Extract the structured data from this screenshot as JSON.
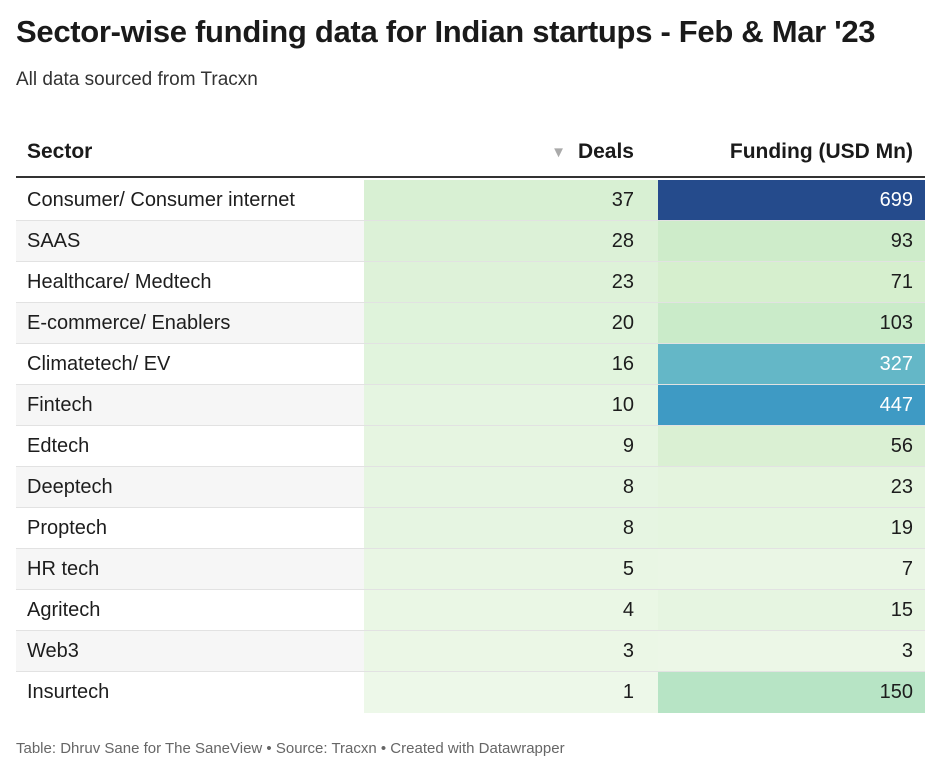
{
  "title": "Sector-wise funding data for Indian startups - Feb & Mar '23",
  "subtitle": "All data sourced from Tracxn",
  "columns": {
    "sector": "Sector",
    "deals": "Deals",
    "funding": "Funding (USD Mn)"
  },
  "sort_icon": "sort-descending-icon",
  "footer": "Table: Dhruv Sane for The SaneView • Source: Tracxn • Created with Datawrapper",
  "colors": {
    "deals_light": "#f0f9ec",
    "deals_dark": "#d8f0d3",
    "funding_scale": [
      "#eef8ea",
      "#d3eecb",
      "#a3dcc0",
      "#57afc9",
      "#2c8bc0",
      "#254b8c"
    ],
    "row_alt": "#f6f6f6",
    "header_rule": "#333333"
  },
  "chart_data": {
    "type": "table",
    "title": "Sector-wise funding data for Indian startups - Feb & Mar '23",
    "subtitle": "All data sourced from Tracxn",
    "columns": [
      "Sector",
      "Deals",
      "Funding (USD Mn)"
    ],
    "sorted_by": "Deals",
    "sort_order": "descending",
    "rows": [
      {
        "sector": "Consumer/ Consumer internet",
        "deals": 37,
        "funding": 699
      },
      {
        "sector": "SAAS",
        "deals": 28,
        "funding": 93
      },
      {
        "sector": "Healthcare/ Medtech",
        "deals": 23,
        "funding": 71
      },
      {
        "sector": "E-commerce/ Enablers",
        "deals": 20,
        "funding": 103
      },
      {
        "sector": "Climatetech/ EV",
        "deals": 16,
        "funding": 327
      },
      {
        "sector": "Fintech",
        "deals": 10,
        "funding": 447
      },
      {
        "sector": "Edtech",
        "deals": 9,
        "funding": 56
      },
      {
        "sector": "Deeptech",
        "deals": 8,
        "funding": 23
      },
      {
        "sector": "Proptech",
        "deals": 8,
        "funding": 19
      },
      {
        "sector": "HR tech",
        "deals": 5,
        "funding": 7
      },
      {
        "sector": "Agritech",
        "deals": 4,
        "funding": 15
      },
      {
        "sector": "Web3",
        "deals": 3,
        "funding": 3
      },
      {
        "sector": "Insurtech",
        "deals": 1,
        "funding": 150
      }
    ]
  }
}
